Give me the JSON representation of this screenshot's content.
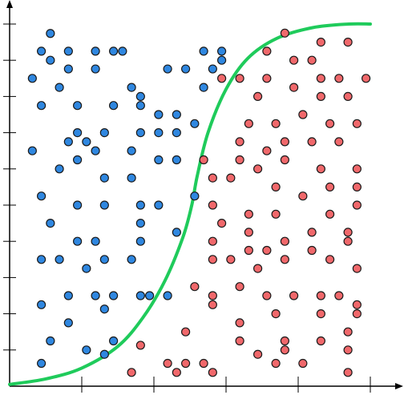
{
  "chart_data": {
    "type": "scatter",
    "title": "",
    "xlabel": "",
    "ylabel": "",
    "xlim": [
      0,
      10
    ],
    "ylim": [
      0,
      10
    ],
    "grid": false,
    "legend": "none",
    "series": [
      {
        "color": "#2f87e0",
        "marker": "circle",
        "points": [
          [
            1.13,
            9.74
          ],
          [
            0.88,
            9.25
          ],
          [
            1.63,
            9.25
          ],
          [
            2.38,
            9.25
          ],
          [
            2.88,
            9.25
          ],
          [
            3.13,
            9.25
          ],
          [
            1.13,
            9.0
          ],
          [
            1.63,
            8.76
          ],
          [
            2.38,
            8.76
          ],
          [
            3.38,
            8.25
          ],
          [
            3.63,
            8.0
          ],
          [
            4.38,
            8.76
          ],
          [
            4.88,
            8.76
          ],
          [
            5.38,
            8.25
          ],
          [
            5.63,
            8.76
          ],
          [
            5.88,
            9.0
          ],
          [
            5.38,
            9.25
          ],
          [
            5.88,
            9.25
          ],
          [
            0.63,
            8.5
          ],
          [
            1.38,
            8.25
          ],
          [
            0.88,
            7.75
          ],
          [
            1.88,
            7.75
          ],
          [
            2.88,
            7.75
          ],
          [
            3.63,
            7.75
          ],
          [
            4.13,
            7.0
          ],
          [
            4.63,
            7.0
          ],
          [
            4.13,
            7.5
          ],
          [
            4.63,
            7.5
          ],
          [
            5.13,
            7.25
          ],
          [
            2.63,
            7.0
          ],
          [
            1.88,
            7.0
          ],
          [
            1.63,
            6.75
          ],
          [
            2.38,
            6.5
          ],
          [
            0.63,
            6.5
          ],
          [
            1.88,
            6.25
          ],
          [
            1.38,
            6.0
          ],
          [
            2.63,
            5.75
          ],
          [
            3.38,
            5.75
          ],
          [
            4.13,
            6.25
          ],
          [
            4.63,
            6.25
          ],
          [
            0.88,
            5.25
          ],
          [
            1.88,
            5.0
          ],
          [
            2.63,
            5.0
          ],
          [
            3.63,
            5.0
          ],
          [
            4.13,
            5.0
          ],
          [
            5.13,
            5.25
          ],
          [
            1.13,
            4.5
          ],
          [
            3.63,
            4.5
          ],
          [
            4.63,
            4.25
          ],
          [
            1.88,
            4.0
          ],
          [
            2.38,
            4.0
          ],
          [
            3.63,
            4.0
          ],
          [
            3.38,
            3.5
          ],
          [
            0.88,
            3.5
          ],
          [
            1.38,
            3.5
          ],
          [
            2.13,
            3.25
          ],
          [
            2.63,
            3.5
          ],
          [
            1.63,
            2.5
          ],
          [
            2.38,
            2.5
          ],
          [
            2.88,
            2.5
          ],
          [
            3.63,
            2.5
          ],
          [
            3.88,
            2.5
          ],
          [
            4.38,
            2.5
          ],
          [
            0.88,
            2.25
          ],
          [
            1.63,
            1.75
          ],
          [
            2.63,
            2.13
          ],
          [
            1.13,
            1.25
          ],
          [
            2.13,
            1.0
          ],
          [
            2.63,
            0.88
          ],
          [
            2.88,
            1.25
          ],
          [
            0.88,
            0.63
          ],
          [
            2.13,
            6.75
          ],
          [
            3.63,
            7.0
          ],
          [
            3.38,
            6.5
          ]
        ]
      },
      {
        "color": "#f0686b",
        "marker": "circle",
        "points": [
          [
            7.63,
            9.75
          ],
          [
            8.63,
            9.5
          ],
          [
            9.38,
            9.5
          ],
          [
            7.13,
            9.25
          ],
          [
            7.88,
            9.0
          ],
          [
            8.38,
            9.0
          ],
          [
            5.88,
            8.5
          ],
          [
            6.38,
            8.5
          ],
          [
            7.13,
            8.5
          ],
          [
            8.63,
            8.5
          ],
          [
            9.13,
            8.5
          ],
          [
            9.88,
            8.5
          ],
          [
            6.88,
            8.0
          ],
          [
            7.88,
            8.25
          ],
          [
            8.63,
            8.0
          ],
          [
            9.38,
            8.0
          ],
          [
            6.63,
            7.25
          ],
          [
            7.38,
            7.25
          ],
          [
            8.13,
            7.5
          ],
          [
            8.88,
            7.25
          ],
          [
            9.63,
            7.25
          ],
          [
            6.38,
            6.75
          ],
          [
            7.13,
            6.5
          ],
          [
            7.63,
            6.75
          ],
          [
            8.38,
            6.75
          ],
          [
            9.13,
            6.75
          ],
          [
            5.38,
            6.25
          ],
          [
            6.38,
            6.25
          ],
          [
            6.88,
            6.0
          ],
          [
            7.63,
            6.25
          ],
          [
            8.63,
            6.0
          ],
          [
            9.63,
            6.0
          ],
          [
            5.63,
            5.75
          ],
          [
            6.13,
            5.75
          ],
          [
            7.38,
            5.5
          ],
          [
            8.13,
            5.25
          ],
          [
            8.88,
            5.5
          ],
          [
            9.63,
            5.5
          ],
          [
            5.63,
            5.0
          ],
          [
            6.63,
            4.75
          ],
          [
            7.38,
            4.75
          ],
          [
            8.88,
            4.75
          ],
          [
            9.63,
            5.0
          ],
          [
            5.88,
            4.5
          ],
          [
            6.63,
            4.25
          ],
          [
            8.38,
            4.25
          ],
          [
            9.38,
            4.25
          ],
          [
            5.63,
            4.0
          ],
          [
            6.63,
            3.75
          ],
          [
            7.13,
            3.75
          ],
          [
            7.63,
            4.0
          ],
          [
            8.38,
            3.75
          ],
          [
            9.38,
            4.0
          ],
          [
            5.63,
            3.5
          ],
          [
            6.13,
            3.5
          ],
          [
            6.88,
            3.25
          ],
          [
            7.63,
            3.5
          ],
          [
            8.88,
            3.5
          ],
          [
            9.63,
            3.25
          ],
          [
            5.13,
            2.75
          ],
          [
            5.63,
            2.5
          ],
          [
            6.38,
            2.75
          ],
          [
            7.13,
            2.5
          ],
          [
            7.88,
            2.5
          ],
          [
            8.63,
            2.5
          ],
          [
            9.13,
            2.5
          ],
          [
            9.63,
            2.25
          ],
          [
            5.63,
            2.25
          ],
          [
            6.38,
            1.75
          ],
          [
            7.38,
            2.0
          ],
          [
            8.63,
            2.0
          ],
          [
            9.63,
            2.0
          ],
          [
            4.88,
            1.5
          ],
          [
            6.38,
            1.25
          ],
          [
            7.63,
            1.25
          ],
          [
            8.63,
            1.25
          ],
          [
            9.38,
            1.5
          ],
          [
            3.63,
            1.13
          ],
          [
            4.38,
            0.63
          ],
          [
            4.88,
            0.63
          ],
          [
            5.38,
            0.63
          ],
          [
            6.88,
            0.88
          ],
          [
            7.38,
            0.63
          ],
          [
            7.63,
            1.0
          ],
          [
            9.38,
            1.0
          ],
          [
            3.38,
            0.38
          ],
          [
            4.63,
            0.38
          ],
          [
            5.63,
            0.38
          ],
          [
            8.13,
            0.63
          ],
          [
            9.38,
            0.38
          ]
        ]
      }
    ],
    "boundary": {
      "color": "#1fcb5b",
      "points": [
        [
          0.0,
          0.05
        ],
        [
          1.0,
          0.2
        ],
        [
          2.0,
          0.5
        ],
        [
          3.0,
          1.1
        ],
        [
          3.7,
          1.9
        ],
        [
          4.3,
          2.9
        ],
        [
          4.8,
          4.1
        ],
        [
          5.05,
          5.0
        ],
        [
          5.2,
          5.8
        ],
        [
          5.5,
          7.0
        ],
        [
          6.0,
          8.2
        ],
        [
          6.6,
          9.05
        ],
        [
          7.4,
          9.6
        ],
        [
          8.4,
          9.9
        ],
        [
          9.4,
          10.0
        ],
        [
          10.0,
          10.0
        ]
      ]
    }
  }
}
